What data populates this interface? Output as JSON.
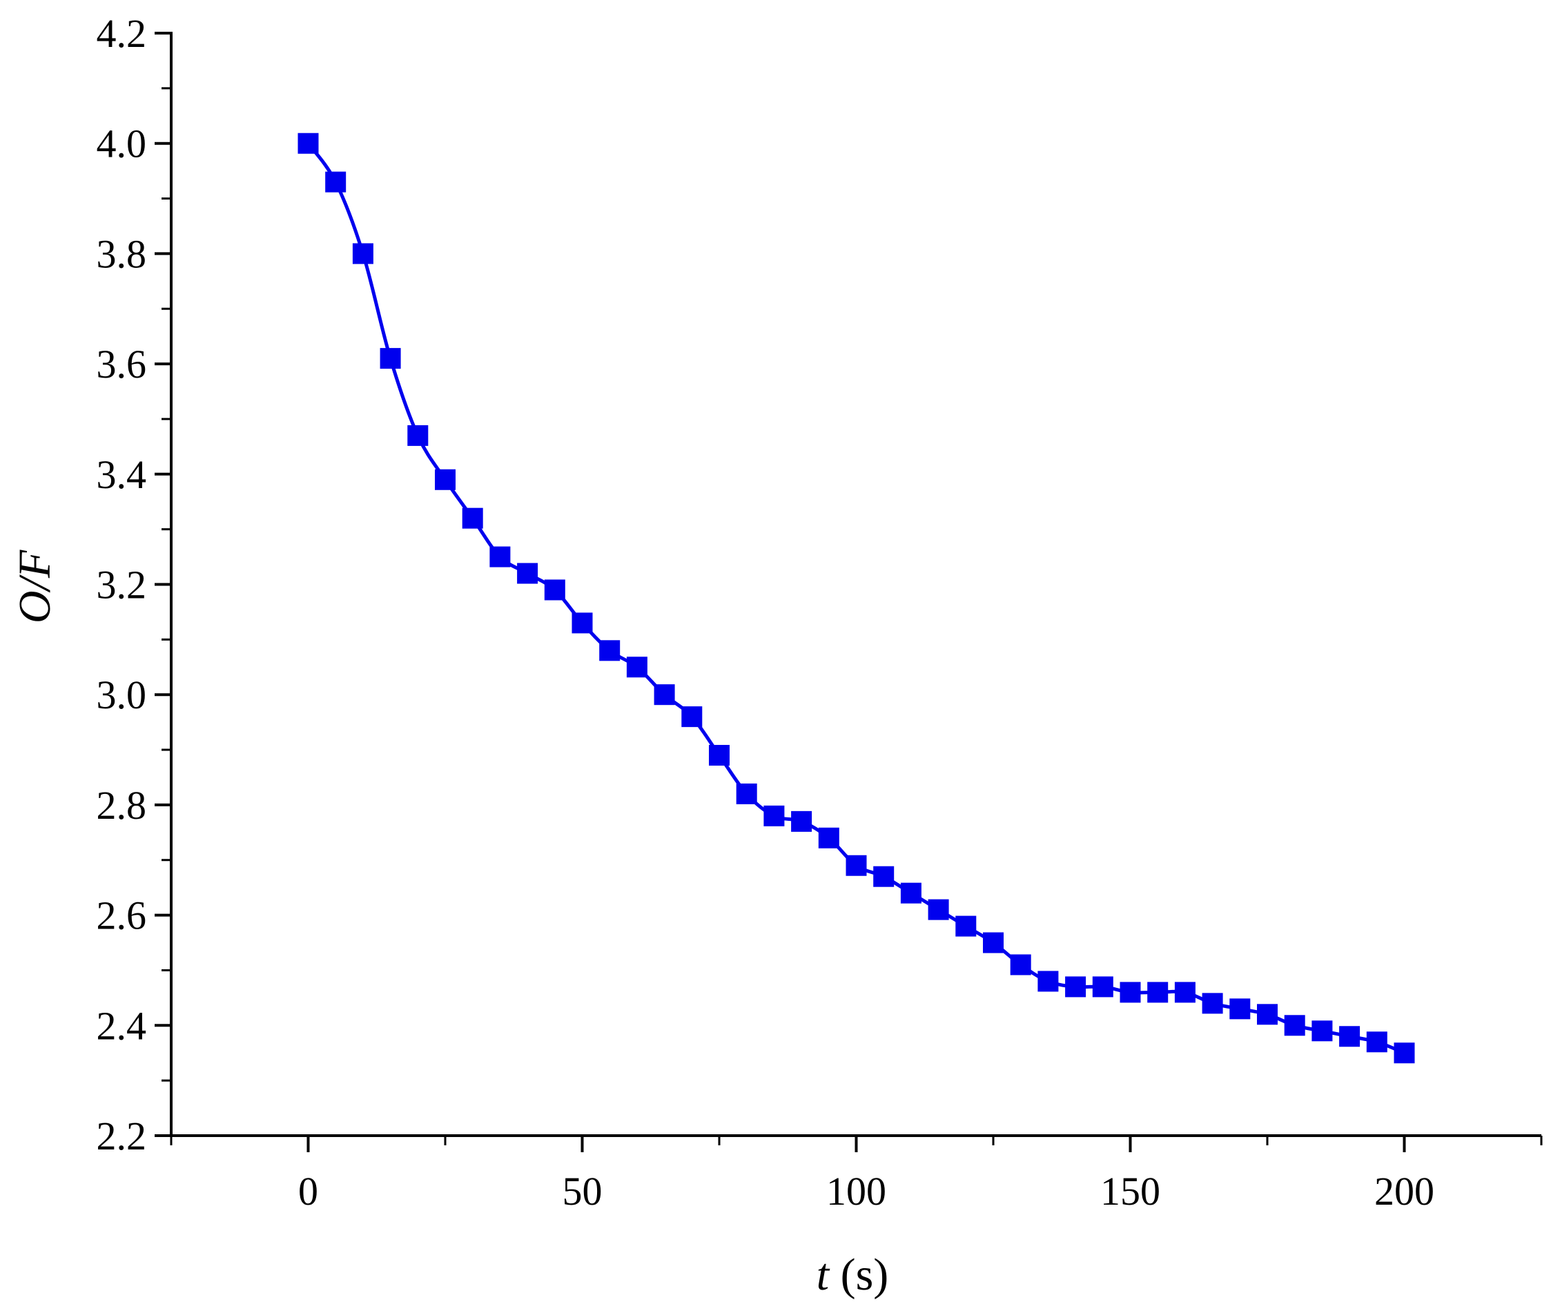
{
  "chart_data": {
    "type": "line",
    "markers": "square",
    "series": [
      {
        "color": "#0000ee",
        "x": [
          0,
          5,
          10,
          15,
          20,
          25,
          30,
          35,
          40,
          45,
          50,
          55,
          60,
          65,
          70,
          75,
          80,
          85,
          90,
          95,
          100,
          105,
          110,
          115,
          120,
          125,
          130,
          135,
          140,
          145,
          150,
          155,
          160,
          165,
          170,
          175,
          180,
          185,
          190,
          195,
          200
        ],
        "y": [
          4.0,
          3.93,
          3.8,
          3.61,
          3.47,
          3.39,
          3.32,
          3.25,
          3.22,
          3.19,
          3.13,
          3.08,
          3.05,
          3.0,
          2.96,
          2.89,
          2.82,
          2.78,
          2.77,
          2.74,
          2.69,
          2.67,
          2.64,
          2.61,
          2.58,
          2.55,
          2.51,
          2.48,
          2.47,
          2.47,
          2.46,
          2.46,
          2.46,
          2.44,
          2.43,
          2.42,
          2.4,
          2.39,
          2.38,
          2.37,
          2.35
        ]
      }
    ],
    "xlim": [
      -25,
      225
    ],
    "ylim": [
      2.2,
      4.2
    ],
    "xticks": [
      0,
      50,
      100,
      150,
      200
    ],
    "xtick_labels": [
      "0",
      "50",
      "100",
      "150",
      "200"
    ],
    "x_minor_step": 25,
    "yticks": [
      2.2,
      2.4,
      2.6,
      2.8,
      3.0,
      3.2,
      3.4,
      3.6,
      3.8,
      4.0,
      4.2
    ],
    "ytick_labels": [
      "2.2",
      "2.4",
      "2.6",
      "2.8",
      "3.0",
      "3.2",
      "3.4",
      "3.6",
      "3.8",
      "4.0",
      "4.2"
    ],
    "y_minor_step": 0.1,
    "xlabel_var": "t",
    "xlabel_unit": " (s)",
    "ylabel": "O/F",
    "grid": false,
    "legend": "none"
  }
}
